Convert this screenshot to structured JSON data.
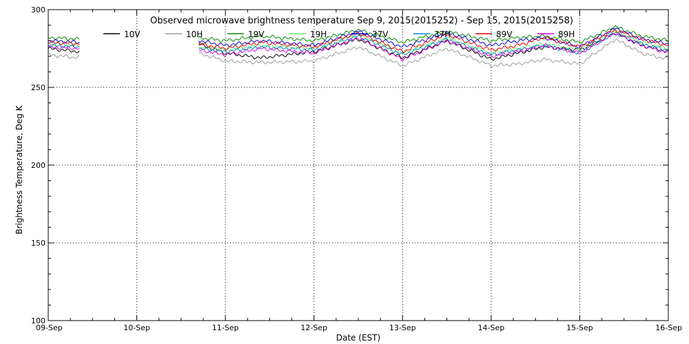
{
  "chart_data": {
    "type": "line",
    "title": "Observed microwave brightness temperature Sep  9, 2015(2015252) - Sep 15, 2015(2015258)",
    "xlabel": "Date (EST)",
    "ylabel": "Brightness Temperature, Deg K",
    "ylim": [
      100,
      300
    ],
    "xlim": [
      0,
      7
    ],
    "yticks": [
      100,
      150,
      200,
      250,
      300
    ],
    "x_tick_labels": [
      "09-Sep",
      "10-Sep",
      "11-Sep",
      "12-Sep",
      "13-Sep",
      "14-Sep",
      "15-Sep",
      "16-Sep"
    ],
    "grid": true,
    "legend_position": "top",
    "x_unit": "days since 09-Sep 00:00 EST",
    "series": [
      {
        "name": "10V",
        "color": "#000000",
        "x": [
          0.0,
          0.35,
          null,
          1.7,
          2.0,
          2.4,
          3.0,
          3.5,
          4.0,
          4.5,
          5.0,
          5.3,
          5.6,
          6.0,
          6.4,
          6.7,
          7.0
        ],
        "y": [
          275,
          273,
          null,
          278,
          272,
          269,
          273,
          281,
          269,
          280,
          268,
          272,
          276,
          274,
          285,
          277,
          273
        ]
      },
      {
        "name": "10H",
        "color": "#9a9a9a",
        "x": [
          0.0,
          0.35,
          null,
          1.7,
          2.0,
          2.4,
          3.0,
          3.5,
          4.0,
          4.5,
          5.0,
          5.3,
          5.6,
          6.0,
          6.4,
          6.7,
          7.0
        ],
        "y": [
          271,
          269,
          null,
          272,
          267,
          266,
          267,
          276,
          264,
          275,
          264,
          265,
          268,
          265,
          281,
          272,
          268
        ]
      },
      {
        "name": "19V",
        "color": "#008800",
        "x": [
          0.0,
          0.35,
          null,
          1.7,
          2.0,
          2.4,
          3.0,
          3.5,
          4.0,
          4.5,
          5.0,
          5.3,
          5.6,
          6.0,
          6.4,
          6.7,
          7.0
        ],
        "y": [
          282,
          281,
          null,
          282,
          280,
          283,
          280,
          287,
          279,
          286,
          280,
          282,
          283,
          279,
          289,
          283,
          280
        ]
      },
      {
        "name": "19H",
        "color": "#66ee66",
        "x": [
          0.0,
          0.35,
          null,
          1.7,
          2.0,
          2.4,
          3.0,
          3.5,
          4.0,
          4.5,
          5.0,
          5.3,
          5.6,
          6.0,
          6.4,
          6.7,
          7.0
        ],
        "y": [
          278,
          277,
          null,
          276,
          274,
          277,
          275,
          284,
          272,
          282,
          272,
          275,
          278,
          274,
          286,
          279,
          275
        ]
      },
      {
        "name": "37V",
        "color": "#0000dd",
        "x": [
          0.0,
          0.35,
          null,
          1.7,
          2.0,
          2.4,
          3.0,
          3.5,
          4.0,
          4.5,
          5.0,
          5.3,
          5.6,
          6.0,
          6.4,
          6.7,
          7.0
        ],
        "y": [
          280,
          279,
          null,
          280,
          277,
          280,
          277,
          286,
          276,
          285,
          277,
          280,
          282,
          276,
          288,
          281,
          278
        ]
      },
      {
        "name": "37H",
        "color": "#0088cc",
        "x": [
          0.0,
          0.35,
          null,
          1.7,
          2.0,
          2.4,
          3.0,
          3.5,
          4.0,
          4.5,
          5.0,
          5.3,
          5.6,
          6.0,
          6.4,
          6.7,
          7.0
        ],
        "y": [
          277,
          276,
          null,
          275,
          273,
          276,
          274,
          283,
          271,
          281,
          271,
          274,
          277,
          272,
          285,
          278,
          274
        ]
      },
      {
        "name": "89V",
        "color": "#ee0000",
        "x": [
          0.0,
          0.35,
          null,
          1.7,
          2.0,
          2.4,
          3.0,
          3.5,
          4.0,
          4.5,
          5.0,
          5.3,
          5.6,
          6.0,
          6.4,
          6.7,
          7.0
        ],
        "y": [
          279,
          278,
          null,
          278,
          275,
          279,
          276,
          285,
          273,
          284,
          274,
          277,
          282,
          276,
          287,
          281,
          277
        ]
      },
      {
        "name": "89H",
        "color": "#dd00dd",
        "x": [
          0.0,
          0.35,
          null,
          1.7,
          2.0,
          2.4,
          3.0,
          3.5,
          4.0,
          4.5,
          5.0,
          5.3,
          5.6,
          6.0,
          6.4,
          6.7,
          7.0
        ],
        "y": [
          276,
          275,
          null,
          274,
          271,
          275,
          272,
          282,
          268,
          280,
          270,
          273,
          277,
          272,
          285,
          277,
          272
        ]
      }
    ]
  }
}
